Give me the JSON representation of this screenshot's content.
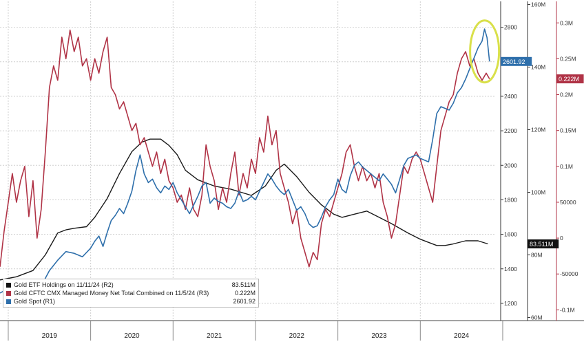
{
  "chart_data": {
    "type": "line",
    "x_ticks": [
      "2019",
      "2020",
      "2021",
      "2022",
      "2023",
      "2024"
    ],
    "x_range": [
      2018.9,
      2024.9
    ],
    "axes": {
      "R1": {
        "ticks": [
          "1200",
          "1400",
          "1600",
          "1800",
          "2000",
          "2200",
          "2400",
          "2600",
          "2800"
        ],
        "ylim": [
          1100,
          2950
        ]
      },
      "R2": {
        "ticks": [
          "60M",
          "80M",
          "100M",
          "120M",
          "140M",
          "160M"
        ],
        "ylim": [
          59,
          161
        ]
      },
      "R3": {
        "ticks": [
          "-0.1M",
          "-50000",
          "0",
          "50000",
          "0.1M",
          "0.15M",
          "0.2M",
          "0.25M",
          "0.3M"
        ],
        "ylim": [
          -0.115,
          0.33
        ]
      }
    },
    "series": [
      {
        "key": "etf",
        "axis": "R2",
        "color": "#1a1a1a",
        "points": [
          [
            2018.9,
            72
          ],
          [
            2019.1,
            73
          ],
          [
            2019.3,
            75
          ],
          [
            2019.45,
            80
          ],
          [
            2019.6,
            87
          ],
          [
            2019.7,
            88
          ],
          [
            2019.8,
            88.5
          ],
          [
            2019.95,
            89
          ],
          [
            2020.05,
            92
          ],
          [
            2020.2,
            98
          ],
          [
            2020.35,
            106
          ],
          [
            2020.5,
            113
          ],
          [
            2020.62,
            116
          ],
          [
            2020.72,
            117
          ],
          [
            2020.85,
            117
          ],
          [
            2020.95,
            115
          ],
          [
            2021.05,
            112
          ],
          [
            2021.15,
            107
          ],
          [
            2021.3,
            104
          ],
          [
            2021.5,
            102
          ],
          [
            2021.7,
            101
          ],
          [
            2021.95,
            99
          ],
          [
            2022.12,
            102
          ],
          [
            2022.25,
            107
          ],
          [
            2022.35,
            109
          ],
          [
            2022.5,
            105
          ],
          [
            2022.65,
            100
          ],
          [
            2022.8,
            96
          ],
          [
            2022.95,
            93
          ],
          [
            2023.05,
            92
          ],
          [
            2023.2,
            93
          ],
          [
            2023.35,
            94
          ],
          [
            2023.5,
            92
          ],
          [
            2023.65,
            90
          ],
          [
            2023.85,
            87
          ],
          [
            2024.0,
            85
          ],
          [
            2024.1,
            84
          ],
          [
            2024.2,
            83
          ],
          [
            2024.3,
            83
          ],
          [
            2024.4,
            83.5
          ],
          [
            2024.55,
            84.5
          ],
          [
            2024.7,
            84.5
          ],
          [
            2024.82,
            83.5
          ]
        ]
      },
      {
        "key": "cftc",
        "axis": "R3",
        "color": "#b03346",
        "points": [
          [
            2018.9,
            -0.04
          ],
          [
            2018.95,
            0.01
          ],
          [
            2019.0,
            0.05
          ],
          [
            2019.05,
            0.09
          ],
          [
            2019.1,
            0.05
          ],
          [
            2019.15,
            0.08
          ],
          [
            2019.2,
            0.1
          ],
          [
            2019.25,
            0.03
          ],
          [
            2019.3,
            0.08
          ],
          [
            2019.35,
            0.0
          ],
          [
            2019.4,
            0.04
          ],
          [
            2019.45,
            0.12
          ],
          [
            2019.5,
            0.21
          ],
          [
            2019.55,
            0.24
          ],
          [
            2019.6,
            0.22
          ],
          [
            2019.65,
            0.28
          ],
          [
            2019.7,
            0.25
          ],
          [
            2019.75,
            0.29
          ],
          [
            2019.8,
            0.26
          ],
          [
            2019.85,
            0.28
          ],
          [
            2019.9,
            0.24
          ],
          [
            2019.95,
            0.25
          ],
          [
            2020.0,
            0.22
          ],
          [
            2020.05,
            0.25
          ],
          [
            2020.1,
            0.23
          ],
          [
            2020.15,
            0.26
          ],
          [
            2020.2,
            0.28
          ],
          [
            2020.25,
            0.21
          ],
          [
            2020.3,
            0.2
          ],
          [
            2020.35,
            0.18
          ],
          [
            2020.4,
            0.19
          ],
          [
            2020.45,
            0.17
          ],
          [
            2020.5,
            0.15
          ],
          [
            2020.55,
            0.16
          ],
          [
            2020.6,
            0.13
          ],
          [
            2020.65,
            0.14
          ],
          [
            2020.7,
            0.12
          ],
          [
            2020.75,
            0.1
          ],
          [
            2020.8,
            0.12
          ],
          [
            2020.85,
            0.09
          ],
          [
            2020.9,
            0.11
          ],
          [
            2020.95,
            0.08
          ],
          [
            2021.0,
            0.07
          ],
          [
            2021.05,
            0.05
          ],
          [
            2021.1,
            0.06
          ],
          [
            2021.15,
            0.04
          ],
          [
            2021.2,
            0.07
          ],
          [
            2021.25,
            0.04
          ],
          [
            2021.3,
            0.03
          ],
          [
            2021.35,
            0.06
          ],
          [
            2021.4,
            0.13
          ],
          [
            2021.45,
            0.1
          ],
          [
            2021.5,
            0.08
          ],
          [
            2021.55,
            0.04
          ],
          [
            2021.6,
            0.07
          ],
          [
            2021.65,
            0.05
          ],
          [
            2021.7,
            0.09
          ],
          [
            2021.75,
            0.12
          ],
          [
            2021.8,
            0.06
          ],
          [
            2021.85,
            0.09
          ],
          [
            2021.9,
            0.07
          ],
          [
            2021.95,
            0.11
          ],
          [
            2022.0,
            0.09
          ],
          [
            2022.05,
            0.14
          ],
          [
            2022.1,
            0.12
          ],
          [
            2022.15,
            0.17
          ],
          [
            2022.2,
            0.13
          ],
          [
            2022.25,
            0.15
          ],
          [
            2022.3,
            0.09
          ],
          [
            2022.35,
            0.07
          ],
          [
            2022.4,
            0.05
          ],
          [
            2022.45,
            0.02
          ],
          [
            2022.5,
            0.04
          ],
          [
            2022.55,
            0.0
          ],
          [
            2022.6,
            -0.02
          ],
          [
            2022.65,
            -0.04
          ],
          [
            2022.7,
            -0.02
          ],
          [
            2022.75,
            -0.03
          ],
          [
            2022.8,
            0.02
          ],
          [
            2022.85,
            0.04
          ],
          [
            2022.9,
            0.03
          ],
          [
            2022.95,
            0.05
          ],
          [
            2023.0,
            0.07
          ],
          [
            2023.05,
            0.09
          ],
          [
            2023.1,
            0.12
          ],
          [
            2023.15,
            0.13
          ],
          [
            2023.2,
            0.1
          ],
          [
            2023.25,
            0.08
          ],
          [
            2023.3,
            0.1
          ],
          [
            2023.35,
            0.08
          ],
          [
            2023.4,
            0.09
          ],
          [
            2023.45,
            0.07
          ],
          [
            2023.5,
            0.09
          ],
          [
            2023.55,
            0.05
          ],
          [
            2023.6,
            0.03
          ],
          [
            2023.65,
            0.0
          ],
          [
            2023.7,
            0.02
          ],
          [
            2023.75,
            0.06
          ],
          [
            2023.8,
            0.1
          ],
          [
            2023.85,
            0.09
          ],
          [
            2023.9,
            0.11
          ],
          [
            2023.95,
            0.12
          ],
          [
            2024.0,
            0.11
          ],
          [
            2024.05,
            0.09
          ],
          [
            2024.1,
            0.07
          ],
          [
            2024.15,
            0.05
          ],
          [
            2024.2,
            0.1
          ],
          [
            2024.25,
            0.15
          ],
          [
            2024.3,
            0.17
          ],
          [
            2024.35,
            0.19
          ],
          [
            2024.4,
            0.2
          ],
          [
            2024.45,
            0.23
          ],
          [
            2024.5,
            0.25
          ],
          [
            2024.55,
            0.26
          ],
          [
            2024.6,
            0.24
          ],
          [
            2024.65,
            0.25
          ],
          [
            2024.7,
            0.23
          ],
          [
            2024.75,
            0.22
          ],
          [
            2024.8,
            0.23
          ],
          [
            2024.84,
            0.222
          ]
        ]
      },
      {
        "key": "spot",
        "axis": "R1",
        "color": "#2e6fab",
        "points": [
          [
            2018.9,
            1260
          ],
          [
            2019.0,
            1285
          ],
          [
            2019.1,
            1300
          ],
          [
            2019.2,
            1310
          ],
          [
            2019.3,
            1285
          ],
          [
            2019.4,
            1300
          ],
          [
            2019.5,
            1390
          ],
          [
            2019.6,
            1450
          ],
          [
            2019.7,
            1500
          ],
          [
            2019.8,
            1490
          ],
          [
            2019.9,
            1470
          ],
          [
            2020.0,
            1520
          ],
          [
            2020.05,
            1560
          ],
          [
            2020.1,
            1590
          ],
          [
            2020.15,
            1530
          ],
          [
            2020.2,
            1610
          ],
          [
            2020.25,
            1680
          ],
          [
            2020.3,
            1710
          ],
          [
            2020.35,
            1750
          ],
          [
            2020.4,
            1720
          ],
          [
            2020.45,
            1780
          ],
          [
            2020.5,
            1850
          ],
          [
            2020.55,
            1970
          ],
          [
            2020.6,
            2060
          ],
          [
            2020.65,
            1950
          ],
          [
            2020.7,
            1900
          ],
          [
            2020.75,
            1920
          ],
          [
            2020.8,
            1870
          ],
          [
            2020.85,
            1840
          ],
          [
            2020.9,
            1880
          ],
          [
            2020.95,
            1860
          ],
          [
            2021.0,
            1900
          ],
          [
            2021.05,
            1840
          ],
          [
            2021.1,
            1800
          ],
          [
            2021.15,
            1760
          ],
          [
            2021.2,
            1720
          ],
          [
            2021.25,
            1770
          ],
          [
            2021.3,
            1820
          ],
          [
            2021.35,
            1880
          ],
          [
            2021.4,
            1900
          ],
          [
            2021.45,
            1780
          ],
          [
            2021.5,
            1810
          ],
          [
            2021.55,
            1790
          ],
          [
            2021.6,
            1780
          ],
          [
            2021.65,
            1760
          ],
          [
            2021.7,
            1750
          ],
          [
            2021.75,
            1780
          ],
          [
            2021.8,
            1850
          ],
          [
            2021.85,
            1790
          ],
          [
            2021.9,
            1800
          ],
          [
            2021.95,
            1820
          ],
          [
            2022.0,
            1800
          ],
          [
            2022.05,
            1850
          ],
          [
            2022.1,
            1900
          ],
          [
            2022.15,
            1950
          ],
          [
            2022.2,
            1920
          ],
          [
            2022.25,
            1880
          ],
          [
            2022.3,
            1850
          ],
          [
            2022.35,
            1830
          ],
          [
            2022.4,
            1860
          ],
          [
            2022.45,
            1800
          ],
          [
            2022.5,
            1740
          ],
          [
            2022.55,
            1760
          ],
          [
            2022.6,
            1720
          ],
          [
            2022.65,
            1660
          ],
          [
            2022.7,
            1640
          ],
          [
            2022.75,
            1650
          ],
          [
            2022.8,
            1700
          ],
          [
            2022.85,
            1760
          ],
          [
            2022.9,
            1800
          ],
          [
            2022.95,
            1830
          ],
          [
            2023.0,
            1920
          ],
          [
            2023.05,
            1860
          ],
          [
            2023.1,
            1840
          ],
          [
            2023.15,
            1940
          ],
          [
            2023.2,
            2000
          ],
          [
            2023.25,
            2020
          ],
          [
            2023.3,
            1990
          ],
          [
            2023.35,
            1970
          ],
          [
            2023.4,
            1950
          ],
          [
            2023.45,
            1930
          ],
          [
            2023.5,
            1910
          ],
          [
            2023.55,
            1950
          ],
          [
            2023.6,
            1920
          ],
          [
            2023.65,
            1890
          ],
          [
            2023.7,
            1840
          ],
          [
            2023.75,
            1920
          ],
          [
            2023.8,
            2000
          ],
          [
            2023.85,
            2040
          ],
          [
            2023.9,
            2050
          ],
          [
            2023.95,
            2060
          ],
          [
            2024.0,
            2040
          ],
          [
            2024.05,
            2030
          ],
          [
            2024.1,
            2020
          ],
          [
            2024.15,
            2150
          ],
          [
            2024.2,
            2300
          ],
          [
            2024.25,
            2340
          ],
          [
            2024.3,
            2330
          ],
          [
            2024.35,
            2320
          ],
          [
            2024.4,
            2360
          ],
          [
            2024.45,
            2420
          ],
          [
            2024.5,
            2450
          ],
          [
            2024.55,
            2500
          ],
          [
            2024.6,
            2560
          ],
          [
            2024.65,
            2620
          ],
          [
            2024.7,
            2680
          ],
          [
            2024.75,
            2720
          ],
          [
            2024.78,
            2790
          ],
          [
            2024.81,
            2740
          ],
          [
            2024.84,
            2601.92
          ]
        ]
      }
    ],
    "end_labels": [
      {
        "axis": "R2",
        "value": 83.511,
        "text": "83.511M",
        "color": "#111111"
      },
      {
        "axis": "R1",
        "value": 2601.92,
        "text": "2601.92",
        "color": "#2e6fab"
      },
      {
        "axis": "R3",
        "value": 0.222,
        "text": "0.222M",
        "color": "#b03346"
      }
    ],
    "legend": [
      {
        "color": "#111111",
        "label": "Gold ETF Holdings on 11/11/24 (R2)",
        "value": "83.511M"
      },
      {
        "color": "#b03346",
        "label": "Gold CFTC CMX Managed Money Net Total Combined on 11/5/24 (R3)",
        "value": "0.222M"
      },
      {
        "color": "#2e6fab",
        "label": "Gold Spot (R1)",
        "value": "2601.92"
      }
    ],
    "highlight": {
      "center": [
        2024.78,
        2660
      ],
      "color": "#d9e04a"
    },
    "grid": true,
    "legend_position": "bottom-left"
  }
}
